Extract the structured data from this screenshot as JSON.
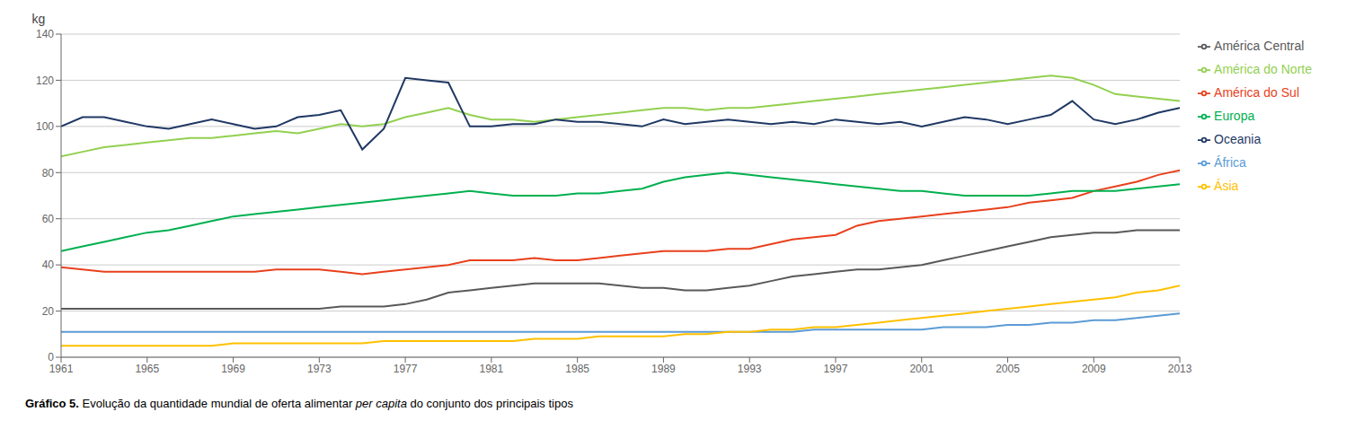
{
  "chart_data": {
    "type": "line",
    "x": [
      1961,
      1962,
      1963,
      1964,
      1965,
      1966,
      1967,
      1968,
      1969,
      1970,
      1971,
      1972,
      1973,
      1974,
      1975,
      1976,
      1977,
      1978,
      1979,
      1980,
      1981,
      1982,
      1983,
      1984,
      1985,
      1986,
      1987,
      1988,
      1989,
      1990,
      1991,
      1992,
      1993,
      1994,
      1995,
      1996,
      1997,
      1998,
      1999,
      2000,
      2001,
      2002,
      2003,
      2004,
      2005,
      2006,
      2007,
      2008,
      2009,
      2010,
      2011,
      2012,
      2013
    ],
    "series": [
      {
        "name": "África",
        "color": "#5B9BD5",
        "values": [
          11,
          11,
          11,
          11,
          11,
          11,
          11,
          11,
          11,
          11,
          11,
          11,
          11,
          11,
          11,
          11,
          11,
          11,
          11,
          11,
          11,
          11,
          11,
          11,
          11,
          11,
          11,
          11,
          11,
          11,
          11,
          11,
          11,
          11,
          11,
          12,
          12,
          12,
          12,
          12,
          12,
          13,
          13,
          13,
          14,
          14,
          15,
          15,
          16,
          16,
          17,
          18,
          19
        ]
      },
      {
        "name": "América do Norte",
        "color": "#92D050",
        "values": [
          87,
          89,
          91,
          92,
          93,
          94,
          95,
          95,
          96,
          97,
          98,
          97,
          99,
          101,
          100,
          101,
          104,
          106,
          108,
          105,
          103,
          103,
          102,
          103,
          104,
          105,
          106,
          107,
          108,
          108,
          107,
          108,
          108,
          109,
          110,
          111,
          112,
          113,
          114,
          115,
          116,
          117,
          118,
          119,
          120,
          121,
          122,
          121,
          118,
          114,
          113,
          112,
          111
        ]
      },
      {
        "name": "América Central",
        "color": "#595959",
        "values": [
          21,
          21,
          21,
          21,
          21,
          21,
          21,
          21,
          21,
          21,
          21,
          21,
          21,
          22,
          22,
          22,
          23,
          25,
          28,
          29,
          30,
          31,
          32,
          32,
          32,
          32,
          31,
          30,
          30,
          29,
          29,
          30,
          31,
          33,
          35,
          36,
          37,
          38,
          38,
          39,
          40,
          42,
          44,
          46,
          48,
          50,
          52,
          53,
          54,
          54,
          55,
          55,
          55
        ]
      },
      {
        "name": "América do Sul",
        "color": "#E8401C",
        "values": [
          39,
          38,
          37,
          37,
          37,
          37,
          37,
          37,
          37,
          37,
          38,
          38,
          38,
          37,
          36,
          37,
          38,
          39,
          40,
          42,
          42,
          42,
          43,
          42,
          42,
          43,
          44,
          45,
          46,
          46,
          46,
          47,
          47,
          49,
          51,
          52,
          53,
          57,
          59,
          60,
          61,
          62,
          63,
          64,
          65,
          67,
          68,
          69,
          72,
          74,
          76,
          79,
          81
        ]
      },
      {
        "name": "Ásia",
        "color": "#FFC000",
        "values": [
          5,
          5,
          5,
          5,
          5,
          5,
          5,
          5,
          6,
          6,
          6,
          6,
          6,
          6,
          6,
          7,
          7,
          7,
          7,
          7,
          7,
          7,
          8,
          8,
          8,
          9,
          9,
          9,
          9,
          10,
          10,
          11,
          11,
          12,
          12,
          13,
          13,
          14,
          15,
          16,
          17,
          18,
          19,
          20,
          21,
          22,
          23,
          24,
          25,
          26,
          28,
          29,
          31
        ]
      },
      {
        "name": "Europa",
        "color": "#00B050",
        "values": [
          46,
          48,
          50,
          52,
          54,
          55,
          57,
          59,
          61,
          62,
          63,
          64,
          65,
          66,
          67,
          68,
          69,
          70,
          71,
          72,
          71,
          70,
          70,
          70,
          71,
          71,
          72,
          73,
          76,
          78,
          79,
          80,
          79,
          78,
          77,
          76,
          75,
          74,
          73,
          72,
          72,
          71,
          70,
          70,
          70,
          70,
          71,
          72,
          72,
          72,
          73,
          74,
          75
        ]
      },
      {
        "name": "Oceania",
        "color": "#1F3864",
        "values": [
          100,
          104,
          104,
          102,
          100,
          99,
          101,
          103,
          101,
          99,
          100,
          104,
          105,
          107,
          90,
          99,
          121,
          120,
          119,
          100,
          100,
          101,
          101,
          103,
          102,
          102,
          101,
          100,
          103,
          101,
          102,
          103,
          102,
          101,
          102,
          101,
          103,
          102,
          101,
          102,
          100,
          102,
          104,
          103,
          101,
          103,
          105,
          111,
          103,
          101,
          103,
          106,
          108
        ]
      }
    ],
    "ylabel": "kg",
    "xlim": [
      1961,
      2013
    ],
    "xticks": [
      1961,
      1965,
      1969,
      1973,
      1977,
      1981,
      1985,
      1989,
      1993,
      1997,
      2001,
      2005,
      2009,
      2013
    ],
    "ylim": [
      0,
      140
    ],
    "yticks": [
      0,
      20,
      40,
      60,
      80,
      100,
      120,
      140
    ],
    "grid": true,
    "legend": "right",
    "caption": [
      {
        "text": "Gráfico 5.",
        "style": "bold"
      },
      {
        "text": " Evolução da quantidade mundial de oferta alimentar ",
        "style": "normal"
      },
      {
        "text": "per capita",
        "style": "italic"
      },
      {
        "text": " do conjunto dos principais tipos",
        "style": "normal"
      }
    ]
  }
}
